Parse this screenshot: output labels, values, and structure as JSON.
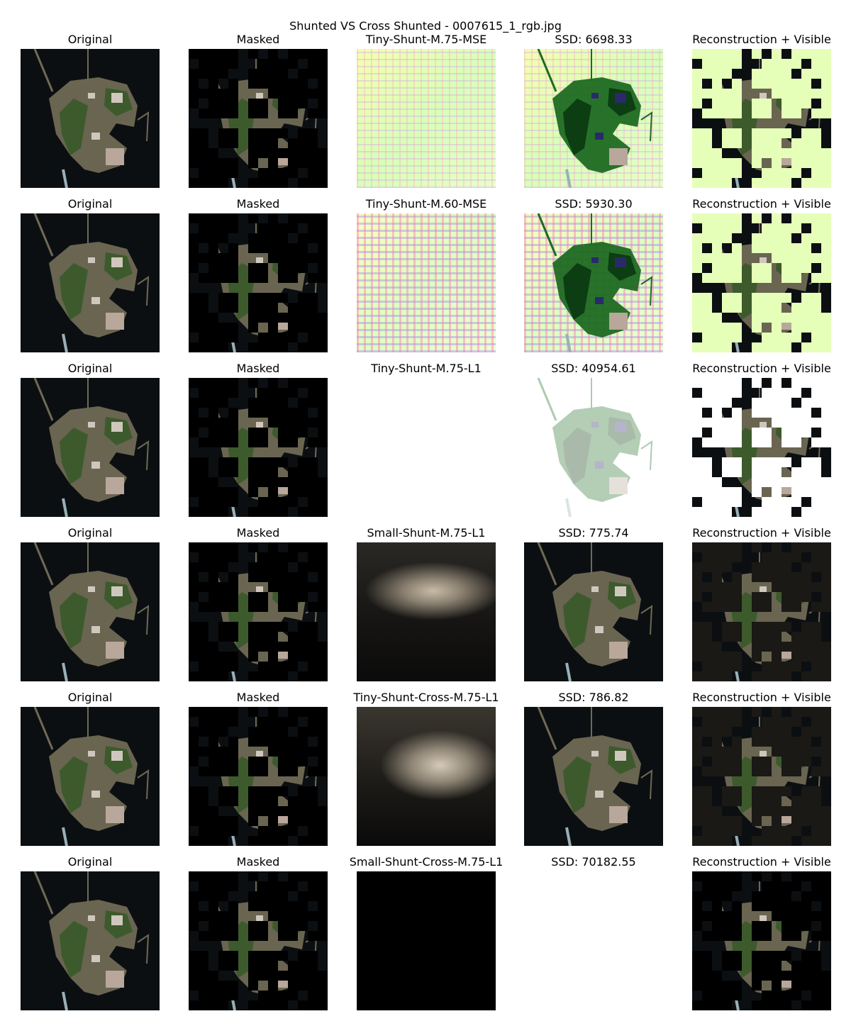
{
  "figure": {
    "suptitle": "Shunted VS Cross Shunted - 0007615_1_rgb.jpg"
  },
  "column_titles": {
    "original": "Original",
    "masked": "Masked",
    "composite": "Reconstruction + Visible"
  },
  "rows": [
    {
      "model": "Tiny-Shunt-M.75-MSE",
      "ssd": "SSD: 6698.33",
      "style": "lime"
    },
    {
      "model": "Tiny-Shunt-M.60-MSE",
      "ssd": "SSD: 5930.30",
      "style": "lime2"
    },
    {
      "model": "Tiny-Shunt-M.75-L1",
      "ssd": "SSD: 40954.61",
      "style": "white"
    },
    {
      "model": "Small-Shunt-M.75-L1",
      "ssd": "SSD: 775.74",
      "style": "dark"
    },
    {
      "model": "Tiny-Shunt-Cross-M.75-L1",
      "ssd": "SSD: 786.82",
      "style": "dark2"
    },
    {
      "model": "Small-Shunt-Cross-M.75-L1",
      "ssd": "SSD: 70182.55",
      "style": "black"
    }
  ]
}
